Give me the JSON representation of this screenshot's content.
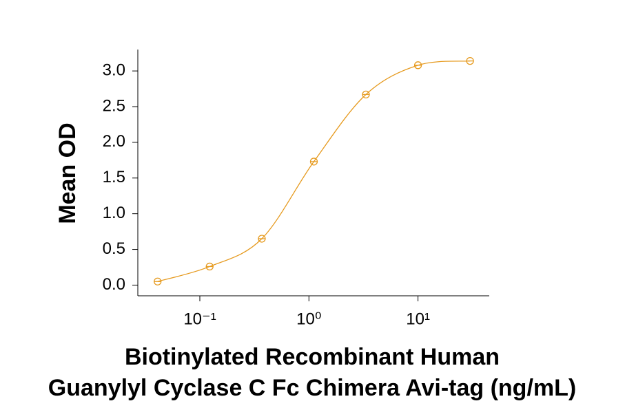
{
  "chart_data": {
    "type": "scatter",
    "ylabel": "Mean OD",
    "xlabel": [
      "Biotinylated Recombinant Human",
      "Guanylyl Cyclase C Fc Chimera Avi-tag (ng/mL)"
    ],
    "x": [
      0.041,
      0.123,
      0.37,
      1.11,
      3.33,
      10,
      30
    ],
    "values": [
      0.05,
      0.26,
      0.65,
      1.73,
      2.67,
      3.08,
      3.14
    ],
    "color": "#e69a1e",
    "xscale": "log",
    "xlim": [
      0.027,
      45
    ],
    "ylim": [
      -0.15,
      3.3
    ],
    "xticks": [
      {
        "value": 0.1,
        "label": "10⁻¹"
      },
      {
        "value": 1,
        "label": "10⁰"
      },
      {
        "value": 10,
        "label": "10¹"
      }
    ],
    "yticks": [
      {
        "value": 0,
        "label": "0.0"
      },
      0.5,
      {
        "value": 1,
        "label": "1.0"
      },
      1.5,
      {
        "value": 2,
        "label": "2.0"
      },
      2.5,
      {
        "value": 3,
        "label": "3.0"
      }
    ]
  }
}
